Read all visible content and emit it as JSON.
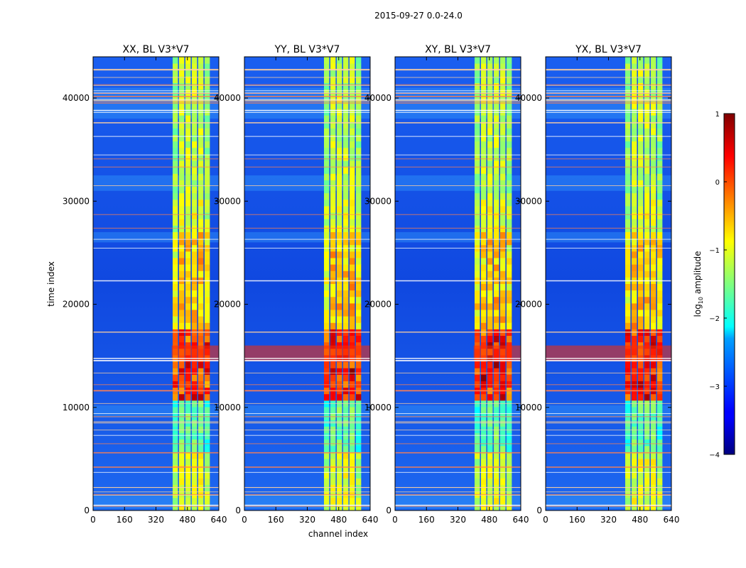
{
  "chart_data": {
    "type": "heatmap",
    "suptitle": "2015-09-27 0.0-24.0",
    "xlabel": "channel index",
    "ylabel": "time index",
    "xlim": [
      0,
      640
    ],
    "ylim": [
      0,
      44000
    ],
    "x_ticks": [
      "0",
      "160",
      "320",
      "480",
      "640"
    ],
    "y_ticks": [
      "0",
      "10000",
      "20000",
      "30000",
      "40000"
    ],
    "x_tick_values": [
      0,
      160,
      320,
      480,
      640
    ],
    "y_tick_values": [
      0,
      10000,
      20000,
      30000,
      40000
    ],
    "panels": [
      {
        "title": "XX, BL V3*V7",
        "red_band_start_channel": 400
      },
      {
        "title": "YY, BL V3*V7",
        "red_band_start_channel": 0
      },
      {
        "title": "XY, BL V3*V7",
        "red_band_start_channel": 400
      },
      {
        "title": "YX, BL V3*V7",
        "red_band_start_channel": 0
      }
    ],
    "strong_band": {
      "time_start": 13500,
      "time_end": 17000
    },
    "active_channels": {
      "start": 405,
      "end": 600
    },
    "colorbar": {
      "label": "log10 amplitude",
      "min": -4,
      "max": 1,
      "ticks": [
        "1",
        "0",
        "−1",
        "−2",
        "−3",
        "−4"
      ],
      "tick_values": [
        1,
        0,
        -1,
        -2,
        -3,
        -4
      ],
      "colormap": "jet"
    }
  }
}
